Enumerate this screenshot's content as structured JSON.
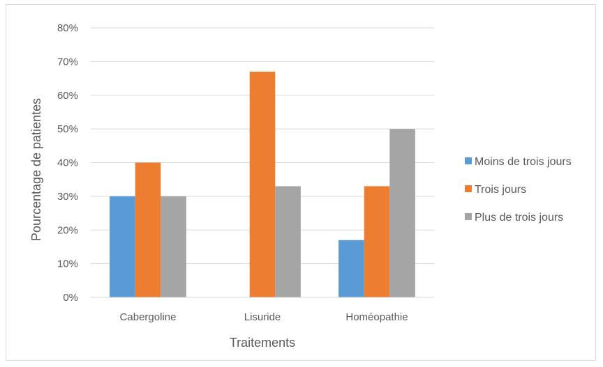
{
  "chart_data": {
    "type": "bar",
    "title": "",
    "xlabel": "Traitements",
    "ylabel": "Pourcentage de patientes",
    "categories": [
      "Cabergoline",
      "Lisuride",
      "Homéopathie"
    ],
    "series": [
      {
        "name": "Moins de trois jours",
        "color": "#5b9bd5",
        "values": [
          30,
          0,
          17
        ]
      },
      {
        "name": "Trois jours",
        "color": "#ed7d31",
        "values": [
          40,
          67,
          33
        ]
      },
      {
        "name": "Plus de trois jours",
        "color": "#a5a5a5",
        "values": [
          30,
          33,
          50
        ]
      }
    ],
    "ylim": [
      0,
      80
    ],
    "yticks": [
      "0%",
      "10%",
      "20%",
      "30%",
      "40%",
      "50%",
      "60%",
      "70%",
      "80%"
    ],
    "grid": true,
    "legend": "right"
  }
}
